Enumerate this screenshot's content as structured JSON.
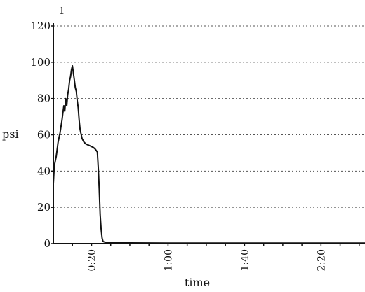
{
  "chart_data": {
    "type": "line",
    "corner_label": "1",
    "xlabel": "time",
    "ylabel": "psi",
    "x_unit": "seconds",
    "xlim": [
      0,
      163
    ],
    "ylim": [
      0,
      120
    ],
    "y_ticks": [
      0,
      20,
      40,
      60,
      80,
      100,
      120
    ],
    "x_ticks": [
      {
        "value": 20,
        "label": "0:20"
      },
      {
        "value": 60,
        "label": "1:00"
      },
      {
        "value": 100,
        "label": "1:40"
      },
      {
        "value": 140,
        "label": "2:20"
      }
    ],
    "grid": {
      "horizontal": true,
      "style": "dotted"
    },
    "series": [
      {
        "color": "#111111",
        "points": [
          [
            0,
            33
          ],
          [
            0.5,
            43
          ],
          [
            1.5,
            48
          ],
          [
            2.5,
            56
          ],
          [
            3.5,
            61
          ],
          [
            4.5,
            68
          ],
          [
            5,
            72
          ],
          [
            5.5,
            76
          ],
          [
            6,
            73
          ],
          [
            6.5,
            80
          ],
          [
            7,
            76
          ],
          [
            7.5,
            82
          ],
          [
            8,
            85
          ],
          [
            8.5,
            90
          ],
          [
            9,
            92
          ],
          [
            9.5,
            96
          ],
          [
            10,
            98
          ],
          [
            10.5,
            94
          ],
          [
            11,
            90
          ],
          [
            11.5,
            86
          ],
          [
            12,
            84
          ],
          [
            12.5,
            79
          ],
          [
            13,
            75
          ],
          [
            13.5,
            68
          ],
          [
            14,
            63
          ],
          [
            15,
            58
          ],
          [
            16,
            56
          ],
          [
            17,
            55
          ],
          [
            18,
            54.5
          ],
          [
            19,
            54
          ],
          [
            20,
            53.5
          ],
          [
            21,
            53
          ],
          [
            22,
            52
          ],
          [
            23,
            50.5
          ],
          [
            23.5,
            42
          ],
          [
            24,
            30
          ],
          [
            24.5,
            16
          ],
          [
            25,
            8
          ],
          [
            25.5,
            3
          ],
          [
            26,
            1.2
          ],
          [
            27,
            0.8
          ],
          [
            30,
            0.5
          ],
          [
            40,
            0.4
          ],
          [
            60,
            0.3
          ],
          [
            80,
            0.3
          ],
          [
            100,
            0.3
          ],
          [
            120,
            0.3
          ],
          [
            140,
            0.3
          ],
          [
            160,
            0.3
          ],
          [
            163,
            0.3
          ]
        ]
      }
    ]
  }
}
